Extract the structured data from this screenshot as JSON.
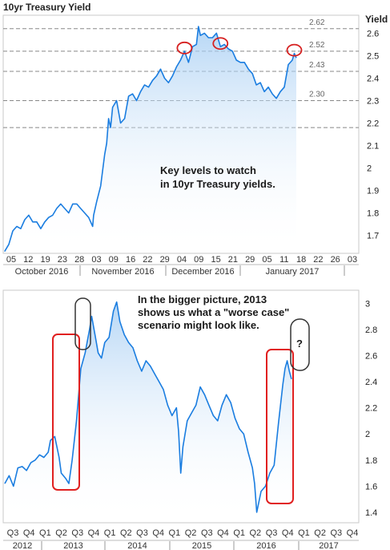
{
  "chart_data": [
    {
      "type": "line",
      "title": "10yr Treasury Yield",
      "ylabel": "Yield",
      "ylim": [
        1.62,
        2.68
      ],
      "yticks": [
        "1.7",
        "1.8",
        "1.9",
        "2",
        "2.1",
        "2.2",
        "2.3",
        "2.4",
        "2.5",
        "2.6"
      ],
      "xticks": [
        "05",
        "12",
        "19",
        "23",
        "28",
        "03",
        "09",
        "16",
        "22",
        "29",
        "04",
        "09",
        "15",
        "21",
        "29",
        "05",
        "11",
        "18",
        "22",
        "26",
        "03"
      ],
      "month_labels": [
        "October 2016",
        "November 2016",
        "December 2016",
        "January 2017"
      ],
      "levels": [
        {
          "label": "2.62",
          "value": 2.62
        },
        {
          "label": "2.52",
          "value": 2.52
        },
        {
          "label": "2.43",
          "value": 2.43
        },
        {
          "label": "2.30",
          "value": 2.3
        },
        {
          "label": "",
          "value": 2.18
        }
      ],
      "annotation": [
        "Key levels to watch",
        "in 10yr Treasury yields."
      ],
      "series": [
        {
          "values": [
            [
              0,
              1.63
            ],
            [
              2,
              1.66
            ],
            [
              4,
              1.72
            ],
            [
              6,
              1.74
            ],
            [
              8,
              1.73
            ],
            [
              10,
              1.77
            ],
            [
              12,
              1.79
            ],
            [
              14,
              1.76
            ],
            [
              16,
              1.76
            ],
            [
              18,
              1.73
            ],
            [
              20,
              1.76
            ],
            [
              22,
              1.78
            ],
            [
              24,
              1.79
            ],
            [
              26,
              1.82
            ],
            [
              28,
              1.84
            ],
            [
              30,
              1.82
            ],
            [
              32,
              1.8
            ],
            [
              34,
              1.84
            ],
            [
              36,
              1.84
            ],
            [
              38,
              1.82
            ],
            [
              40,
              1.8
            ],
            [
              42,
              1.78
            ],
            [
              44,
              1.74
            ],
            [
              44.5,
              1.79
            ],
            [
              46,
              1.85
            ],
            [
              48,
              1.92
            ],
            [
              50,
              2.06
            ],
            [
              51,
              2.11
            ],
            [
              52,
              2.22
            ],
            [
              53,
              2.18
            ],
            [
              54,
              2.27
            ],
            [
              56,
              2.3
            ],
            [
              58,
              2.2
            ],
            [
              60,
              2.22
            ],
            [
              62,
              2.32
            ],
            [
              64,
              2.33
            ],
            [
              66,
              2.3
            ],
            [
              68,
              2.34
            ],
            [
              70,
              2.37
            ],
            [
              72,
              2.36
            ],
            [
              74,
              2.39
            ],
            [
              76,
              2.41
            ],
            [
              78,
              2.44
            ],
            [
              80,
              2.4
            ],
            [
              82,
              2.38
            ],
            [
              84,
              2.41
            ],
            [
              86,
              2.45
            ],
            [
              88,
              2.48
            ],
            [
              90,
              2.52
            ],
            [
              92,
              2.47
            ],
            [
              94,
              2.54
            ],
            [
              96,
              2.55
            ],
            [
              97,
              2.63
            ],
            [
              98,
              2.59
            ],
            [
              100,
              2.6
            ],
            [
              102,
              2.58
            ],
            [
              104,
              2.58
            ],
            [
              106,
              2.6
            ],
            [
              108,
              2.54
            ],
            [
              110,
              2.55
            ],
            [
              112,
              2.53
            ],
            [
              114,
              2.52
            ],
            [
              116,
              2.48
            ],
            [
              118,
              2.47
            ],
            [
              120,
              2.47
            ],
            [
              122,
              2.44
            ],
            [
              124,
              2.42
            ],
            [
              126,
              2.37
            ],
            [
              128,
              2.38
            ],
            [
              130,
              2.34
            ],
            [
              132,
              2.36
            ],
            [
              134,
              2.33
            ],
            [
              136,
              2.31
            ],
            [
              138,
              2.34
            ],
            [
              140,
              2.36
            ],
            [
              142,
              2.46
            ],
            [
              144,
              2.48
            ],
            [
              145,
              2.51
            ],
            [
              146,
              2.49
            ]
          ],
          "color": "#1a7de0"
        }
      ],
      "highlight_circles": [
        91,
        109,
        145
      ]
    },
    {
      "type": "line",
      "ylim": [
        1.32,
        3.1
      ],
      "yticks": [
        "1.4",
        "1.6",
        "1.8",
        "2",
        "2.2",
        "2.4",
        "2.6",
        "2.8",
        "3"
      ],
      "quarters": [
        "Q3",
        "Q4",
        "Q1",
        "Q2",
        "Q3",
        "Q4",
        "Q1",
        "Q2",
        "Q3",
        "Q4",
        "Q1",
        "Q2",
        "Q3",
        "Q4",
        "Q1",
        "Q2",
        "Q3",
        "Q4",
        "Q1",
        "Q2",
        "Q3",
        "Q4"
      ],
      "years": [
        "2012",
        "2013",
        "2014",
        "2015",
        "2016",
        "2017"
      ],
      "annotation": [
        "In the bigger picture, 2013",
        "shows us what a \"worse case\"",
        "scenario might look like."
      ],
      "question": "?",
      "series": [
        {
          "values": [
            [
              0,
              1.62
            ],
            [
              0.2,
              1.68
            ],
            [
              0.4,
              1.6
            ],
            [
              0.6,
              1.74
            ],
            [
              0.8,
              1.75
            ],
            [
              1.0,
              1.72
            ],
            [
              1.2,
              1.78
            ],
            [
              1.4,
              1.8
            ],
            [
              1.6,
              1.84
            ],
            [
              1.8,
              1.82
            ],
            [
              2.0,
              1.86
            ],
            [
              2.1,
              1.95
            ],
            [
              2.3,
              1.98
            ],
            [
              2.5,
              1.82
            ],
            [
              2.6,
              1.7
            ],
            [
              2.8,
              1.66
            ],
            [
              2.95,
              1.62
            ],
            [
              3.1,
              1.8
            ],
            [
              3.3,
              2.1
            ],
            [
              3.5,
              2.5
            ],
            [
              3.7,
              2.62
            ],
            [
              3.9,
              2.8
            ],
            [
              4.0,
              2.9
            ],
            [
              4.15,
              2.76
            ],
            [
              4.3,
              2.62
            ],
            [
              4.45,
              2.58
            ],
            [
              4.6,
              2.7
            ],
            [
              4.8,
              2.74
            ],
            [
              5.0,
              2.94
            ],
            [
              5.15,
              3.01
            ],
            [
              5.3,
              2.86
            ],
            [
              5.5,
              2.76
            ],
            [
              5.7,
              2.7
            ],
            [
              5.9,
              2.66
            ],
            [
              6.1,
              2.56
            ],
            [
              6.3,
              2.48
            ],
            [
              6.5,
              2.56
            ],
            [
              6.7,
              2.52
            ],
            [
              6.9,
              2.46
            ],
            [
              7.1,
              2.4
            ],
            [
              7.3,
              2.34
            ],
            [
              7.5,
              2.22
            ],
            [
              7.7,
              2.14
            ],
            [
              7.9,
              2.2
            ],
            [
              8.0,
              2.02
            ],
            [
              8.1,
              1.7
            ],
            [
              8.2,
              1.9
            ],
            [
              8.4,
              2.1
            ],
            [
              8.6,
              2.16
            ],
            [
              8.8,
              2.22
            ],
            [
              9.0,
              2.36
            ],
            [
              9.2,
              2.3
            ],
            [
              9.4,
              2.22
            ],
            [
              9.6,
              2.14
            ],
            [
              9.8,
              2.1
            ],
            [
              10.0,
              2.22
            ],
            [
              10.2,
              2.3
            ],
            [
              10.4,
              2.24
            ],
            [
              10.6,
              2.12
            ],
            [
              10.8,
              2.04
            ],
            [
              11.0,
              2.0
            ],
            [
              11.2,
              1.86
            ],
            [
              11.4,
              1.74
            ],
            [
              11.5,
              1.62
            ],
            [
              11.6,
              1.4
            ],
            [
              11.8,
              1.56
            ],
            [
              12.0,
              1.6
            ],
            [
              12.2,
              1.7
            ],
            [
              12.4,
              1.76
            ],
            [
              12.6,
              2.08
            ],
            [
              12.8,
              2.38
            ],
            [
              12.9,
              2.5
            ],
            [
              13.0,
              2.56
            ],
            [
              13.1,
              2.48
            ],
            [
              13.2,
              2.42
            ]
          ],
          "color": "#1a7de0"
        }
      ],
      "boxes": [
        "2013 rise",
        "2016 rise"
      ]
    }
  ]
}
